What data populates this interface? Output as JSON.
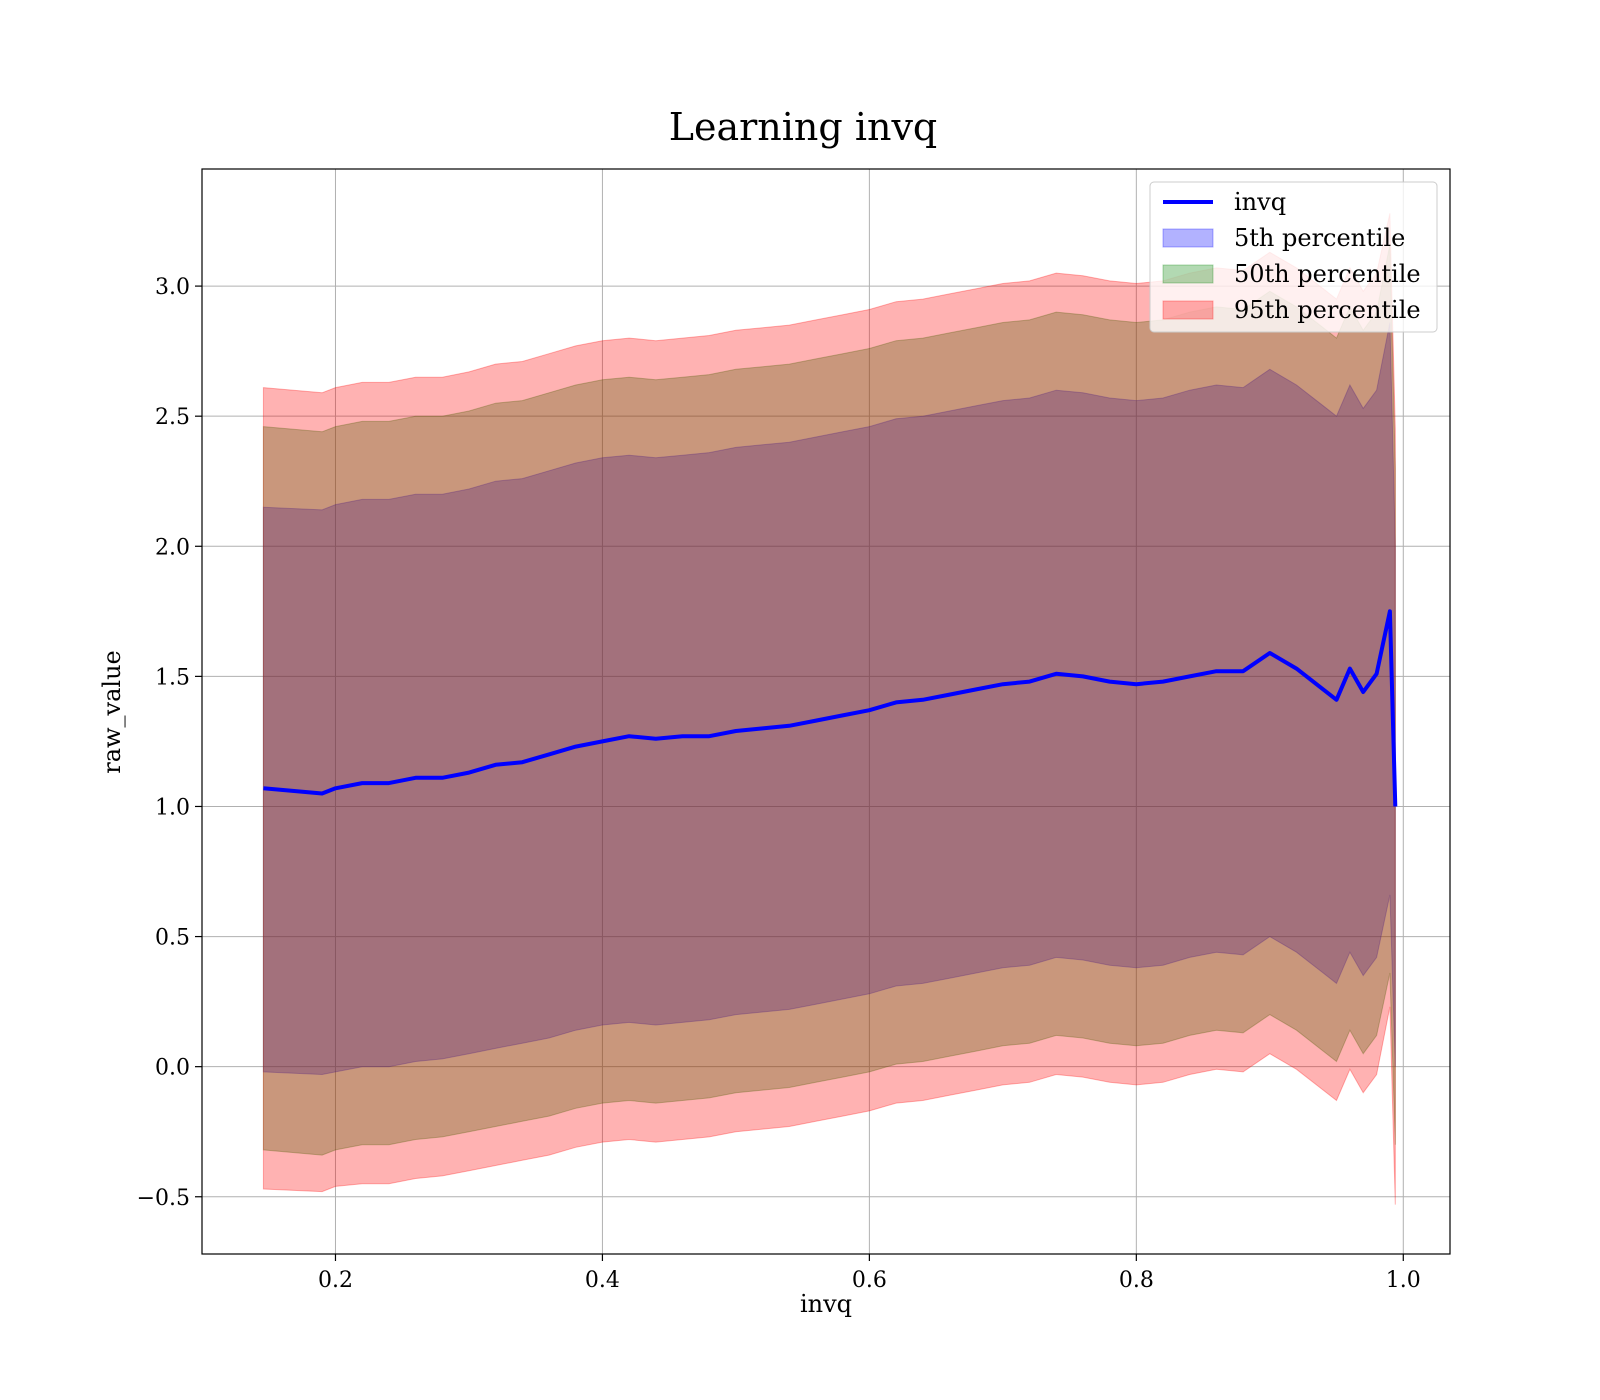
{
  "chart_data": {
    "type": "area",
    "title": "Learning invq",
    "xlabel": "invq",
    "ylabel": "raw_value",
    "xlim": [
      0.1,
      1.035
    ],
    "ylim": [
      -0.72,
      3.45
    ],
    "x_ticks": [
      0.2,
      0.4,
      0.6,
      0.8,
      1.0
    ],
    "x_tick_labels": [
      "0.2",
      "0.4",
      "0.6",
      "0.8",
      "1.0"
    ],
    "y_ticks": [
      -0.5,
      0.0,
      0.5,
      1.0,
      1.5,
      2.0,
      2.5,
      3.0
    ],
    "y_tick_labels": [
      "−0.5",
      "0.0",
      "0.5",
      "1.0",
      "1.5",
      "2.0",
      "2.5",
      "3.0"
    ],
    "grid": true,
    "legend_position": "top-right",
    "x": [
      0.146,
      0.19,
      0.2,
      0.22,
      0.24,
      0.26,
      0.28,
      0.3,
      0.32,
      0.34,
      0.36,
      0.38,
      0.4,
      0.42,
      0.44,
      0.46,
      0.48,
      0.5,
      0.52,
      0.54,
      0.56,
      0.58,
      0.6,
      0.62,
      0.64,
      0.66,
      0.68,
      0.7,
      0.72,
      0.74,
      0.76,
      0.78,
      0.8,
      0.82,
      0.84,
      0.86,
      0.88,
      0.9,
      0.92,
      0.94,
      0.95,
      0.96,
      0.97,
      0.98,
      0.99,
      0.994
    ],
    "series": [
      {
        "name": "invq",
        "kind": "line",
        "color": "#0000ff",
        "values": [
          1.07,
          1.05,
          1.07,
          1.09,
          1.09,
          1.11,
          1.11,
          1.13,
          1.16,
          1.17,
          1.2,
          1.23,
          1.25,
          1.27,
          1.26,
          1.27,
          1.27,
          1.29,
          1.3,
          1.31,
          1.33,
          1.35,
          1.37,
          1.4,
          1.41,
          1.43,
          1.45,
          1.47,
          1.48,
          1.51,
          1.5,
          1.48,
          1.47,
          1.48,
          1.5,
          1.52,
          1.52,
          1.59,
          1.53,
          1.45,
          1.41,
          1.53,
          1.44,
          1.51,
          1.75,
          1.0
        ]
      },
      {
        "name": "5th percentile",
        "kind": "band",
        "color": "#0000ff",
        "opacity": 0.3,
        "lower": [
          -0.02,
          -0.03,
          -0.02,
          0.0,
          0.0,
          0.02,
          0.03,
          0.05,
          0.07,
          0.09,
          0.11,
          0.14,
          0.16,
          0.17,
          0.16,
          0.17,
          0.18,
          0.2,
          0.21,
          0.22,
          0.24,
          0.26,
          0.28,
          0.31,
          0.32,
          0.34,
          0.36,
          0.38,
          0.39,
          0.42,
          0.41,
          0.39,
          0.38,
          0.39,
          0.42,
          0.44,
          0.43,
          0.5,
          0.44,
          0.36,
          0.32,
          0.44,
          0.35,
          0.42,
          0.66,
          0.0
        ],
        "upper": [
          2.15,
          2.14,
          2.16,
          2.18,
          2.18,
          2.2,
          2.2,
          2.22,
          2.25,
          2.26,
          2.29,
          2.32,
          2.34,
          2.35,
          2.34,
          2.35,
          2.36,
          2.38,
          2.39,
          2.4,
          2.42,
          2.44,
          2.46,
          2.49,
          2.5,
          2.52,
          2.54,
          2.56,
          2.57,
          2.6,
          2.59,
          2.57,
          2.56,
          2.57,
          2.6,
          2.62,
          2.61,
          2.68,
          2.62,
          2.54,
          2.5,
          2.62,
          2.53,
          2.6,
          2.86,
          2.0
        ]
      },
      {
        "name": "50th percentile",
        "kind": "band",
        "color": "#008000",
        "opacity": 0.3,
        "lower": [
          -0.32,
          -0.34,
          -0.32,
          -0.3,
          -0.3,
          -0.28,
          -0.27,
          -0.25,
          -0.23,
          -0.21,
          -0.19,
          -0.16,
          -0.14,
          -0.13,
          -0.14,
          -0.13,
          -0.12,
          -0.1,
          -0.09,
          -0.08,
          -0.06,
          -0.04,
          -0.02,
          0.01,
          0.02,
          0.04,
          0.06,
          0.08,
          0.09,
          0.12,
          0.11,
          0.09,
          0.08,
          0.09,
          0.12,
          0.14,
          0.13,
          0.2,
          0.14,
          0.06,
          0.02,
          0.14,
          0.05,
          0.12,
          0.36,
          -0.3
        ],
        "upper": [
          2.46,
          2.44,
          2.46,
          2.48,
          2.48,
          2.5,
          2.5,
          2.52,
          2.55,
          2.56,
          2.59,
          2.62,
          2.64,
          2.65,
          2.64,
          2.65,
          2.66,
          2.68,
          2.69,
          2.7,
          2.72,
          2.74,
          2.76,
          2.79,
          2.8,
          2.82,
          2.84,
          2.86,
          2.87,
          2.9,
          2.89,
          2.87,
          2.86,
          2.87,
          2.9,
          2.92,
          2.91,
          2.98,
          2.92,
          2.84,
          2.8,
          2.92,
          2.83,
          2.9,
          3.16,
          2.3
        ]
      },
      {
        "name": "95th percentile",
        "kind": "band",
        "color": "#ff0000",
        "opacity": 0.3,
        "lower": [
          -0.47,
          -0.48,
          -0.46,
          -0.45,
          -0.45,
          -0.43,
          -0.42,
          -0.4,
          -0.38,
          -0.36,
          -0.34,
          -0.31,
          -0.29,
          -0.28,
          -0.29,
          -0.28,
          -0.27,
          -0.25,
          -0.24,
          -0.23,
          -0.21,
          -0.19,
          -0.17,
          -0.14,
          -0.13,
          -0.11,
          -0.09,
          -0.07,
          -0.06,
          -0.03,
          -0.04,
          -0.06,
          -0.07,
          -0.06,
          -0.03,
          -0.01,
          -0.02,
          0.05,
          -0.01,
          -0.09,
          -0.13,
          -0.01,
          -0.1,
          -0.03,
          0.23,
          -0.53
        ],
        "upper": [
          2.61,
          2.59,
          2.61,
          2.63,
          2.63,
          2.65,
          2.65,
          2.67,
          2.7,
          2.71,
          2.74,
          2.77,
          2.79,
          2.8,
          2.79,
          2.8,
          2.81,
          2.83,
          2.84,
          2.85,
          2.87,
          2.89,
          2.91,
          2.94,
          2.95,
          2.97,
          2.99,
          3.01,
          3.02,
          3.05,
          3.04,
          3.02,
          3.01,
          3.02,
          3.05,
          3.07,
          3.06,
          3.13,
          3.07,
          2.99,
          2.95,
          3.07,
          2.98,
          3.05,
          3.28,
          2.45
        ]
      }
    ]
  }
}
